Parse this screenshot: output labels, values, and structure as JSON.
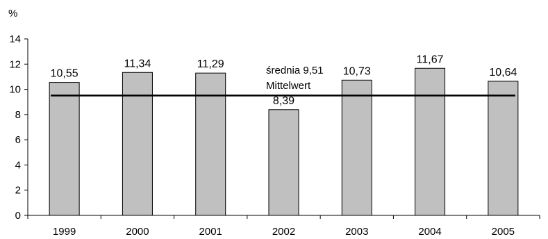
{
  "chart_data": {
    "type": "bar",
    "ylabel": "%",
    "categories": [
      "1999",
      "2000",
      "2001",
      "2002",
      "2003",
      "2004",
      "2005"
    ],
    "values": [
      10.55,
      11.34,
      11.29,
      8.39,
      10.73,
      11.67,
      10.64
    ],
    "data_labels": [
      "10,55",
      "11,34",
      "11,29",
      "8,39",
      "10,73",
      "11,67",
      "10,64"
    ],
    "ylim": [
      0,
      14
    ],
    "yticks": [
      "0",
      "2",
      "4",
      "6",
      "8",
      "10",
      "12",
      "14"
    ],
    "average": {
      "value": 9.51,
      "label_line1": "średnia 9,51",
      "label_line2": "Mittelwert"
    },
    "grid": false,
    "legend": "none",
    "colors": {
      "bar_fill": "#c0c0c0",
      "bar_stroke": "#000000",
      "average_line": "#000000",
      "axis": "#000000"
    }
  }
}
